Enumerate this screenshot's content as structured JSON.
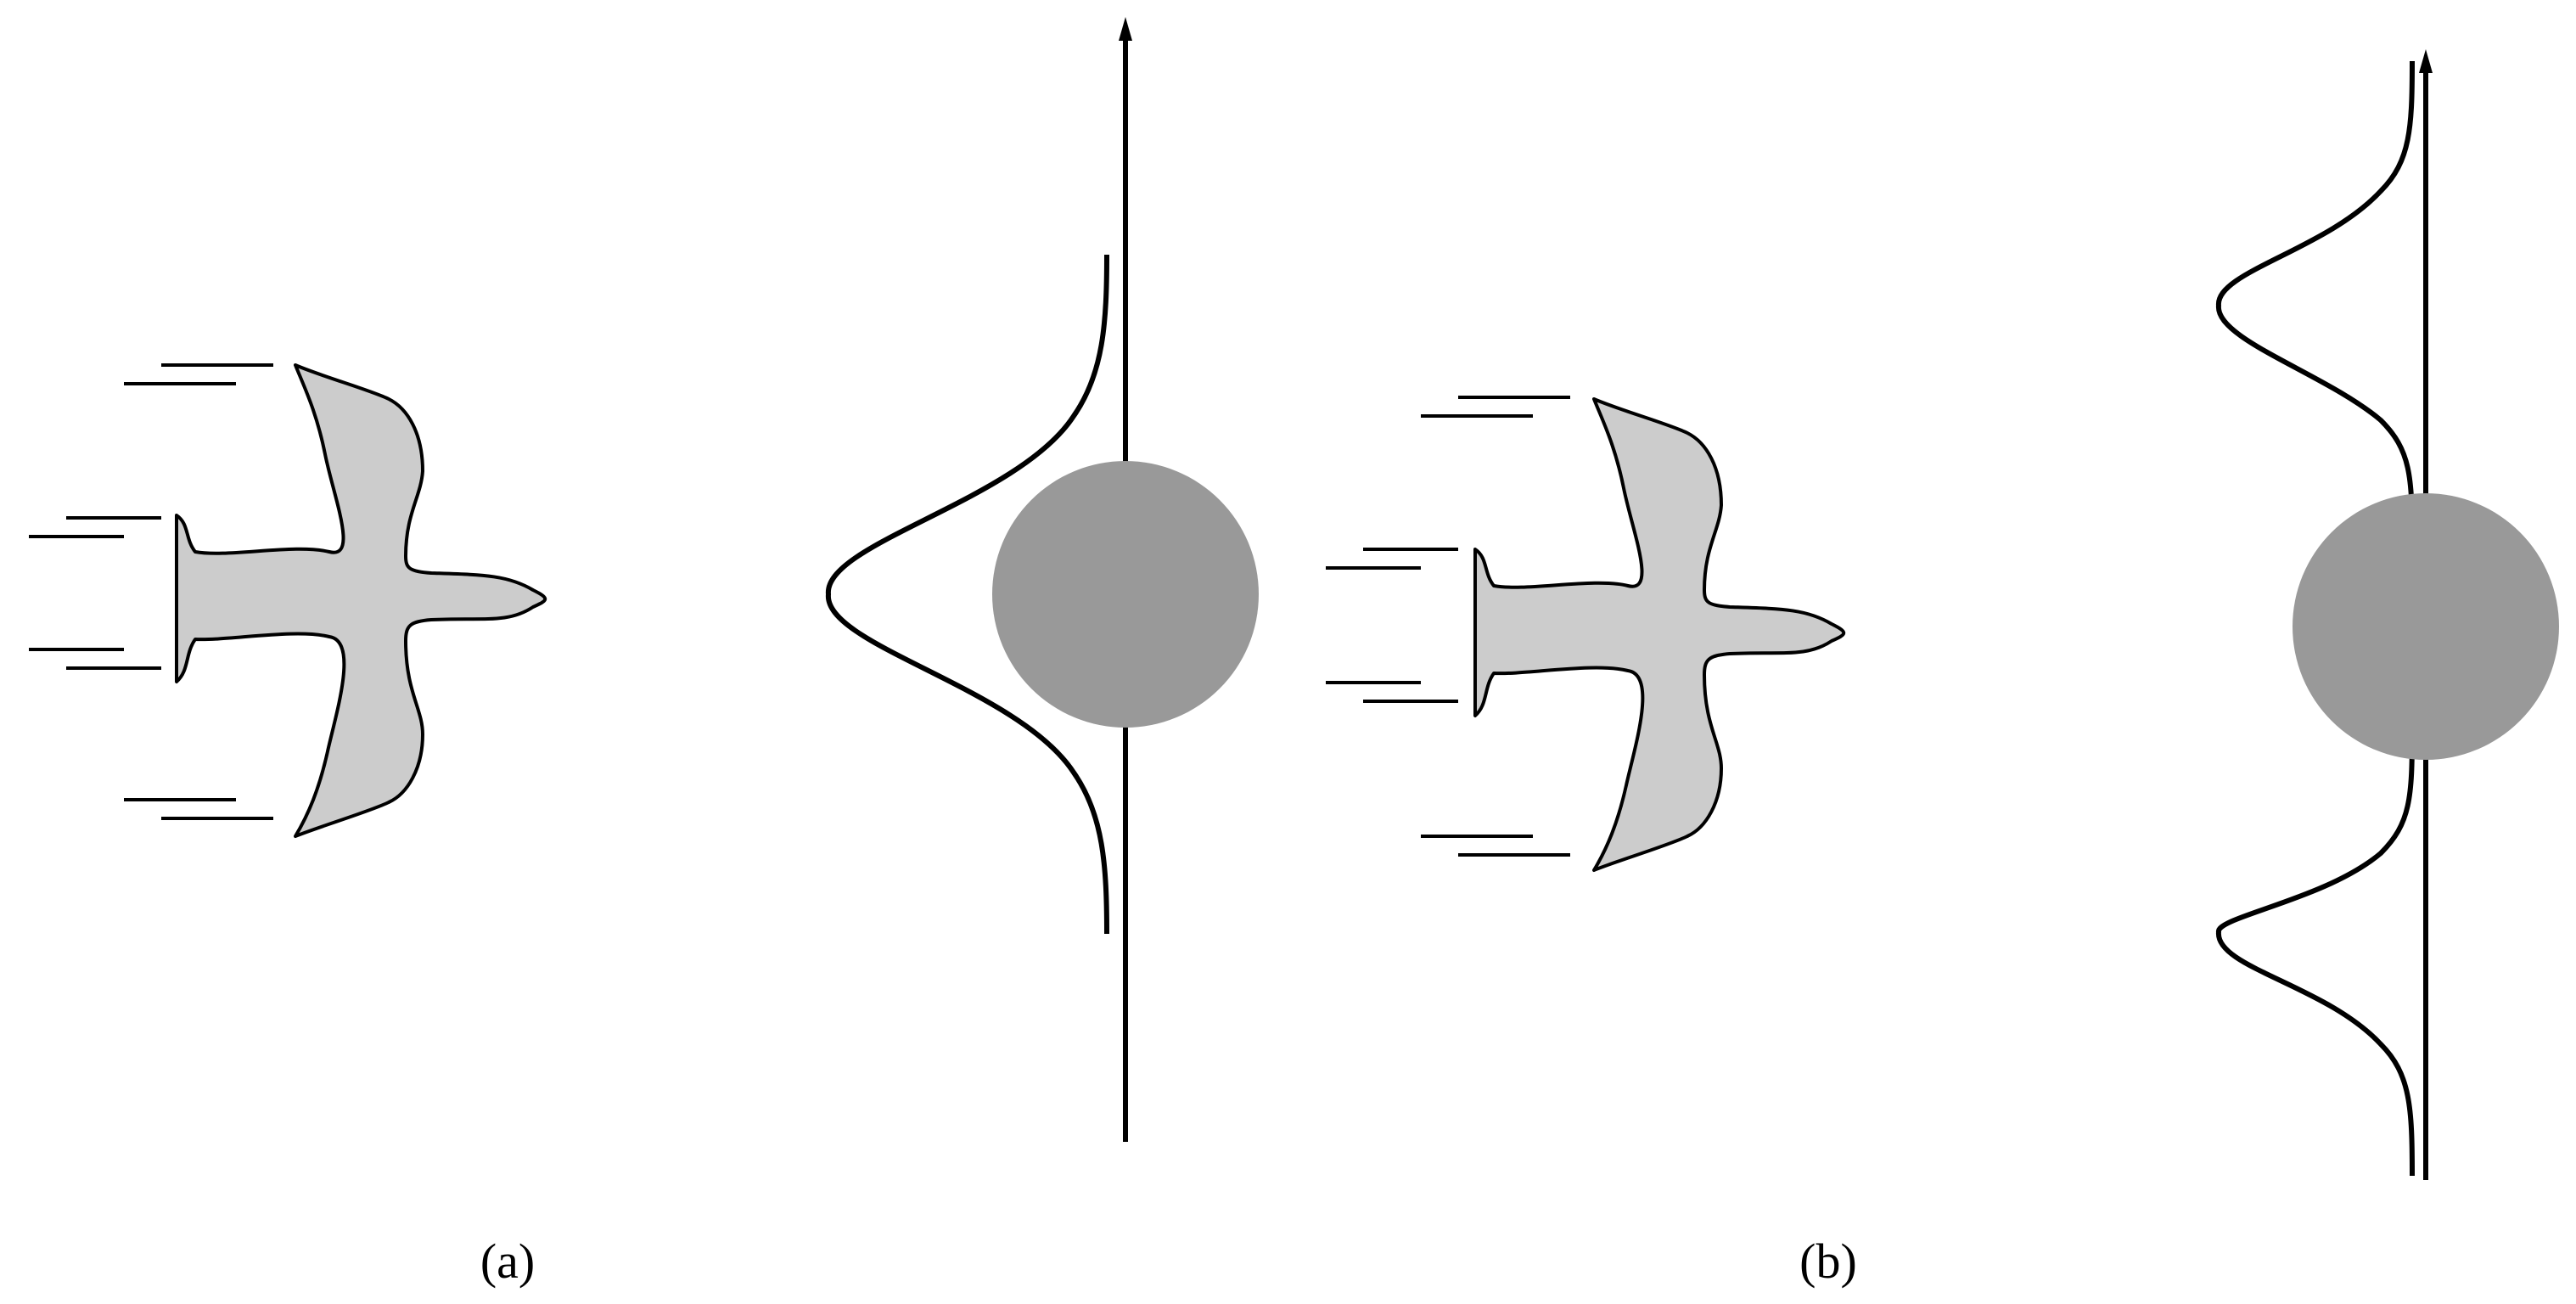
{
  "figure": {
    "panels": [
      {
        "id": "a",
        "label": "(a)"
      },
      {
        "id": "b",
        "label": "(b)"
      }
    ]
  },
  "colors": {
    "bird_fill": "#cccccc",
    "ball_fill": "#999999",
    "stroke": "#000000",
    "background": "#ffffff"
  }
}
